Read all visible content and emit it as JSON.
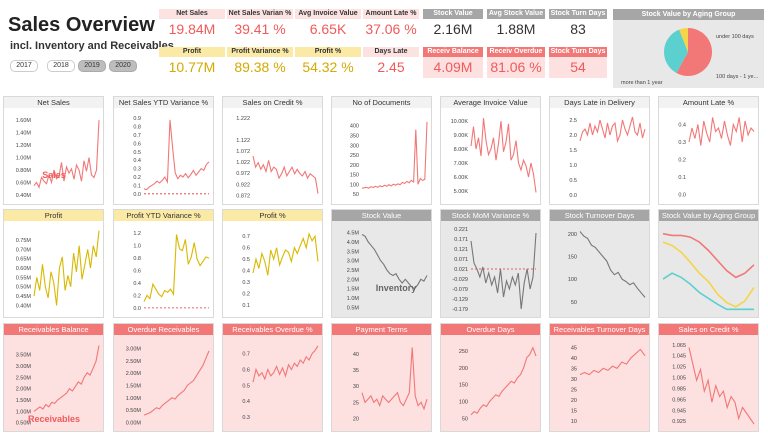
{
  "header": {
    "title": "Sales Overview",
    "subtitle": "incl. Inventory and Receivables",
    "years": [
      {
        "label": "2017",
        "selected": false
      },
      {
        "label": "2018",
        "selected": false
      },
      {
        "label": "2019",
        "selected": true
      },
      {
        "label": "2020",
        "selected": true
      }
    ]
  },
  "kpis": [
    {
      "label": "Net Sales",
      "value": "19.84M",
      "theme": "p"
    },
    {
      "label": "Net Sales Varian %",
      "value": "39.41 %",
      "theme": "p"
    },
    {
      "label": "Avg Invoice Value",
      "value": "6.65K",
      "theme": "p"
    },
    {
      "label": "Amount Late %",
      "value": "37.06 %",
      "theme": "p"
    },
    {
      "label": "Profit",
      "value": "10.77M",
      "theme": "y"
    },
    {
      "label": "Profit Variance %",
      "value": "89.38 %",
      "theme": "y"
    },
    {
      "label": "Profit %",
      "value": "54.32 %",
      "theme": "y"
    },
    {
      "label": "Days Late",
      "value": "2.45",
      "theme": "p"
    },
    {
      "label": "Stock Value",
      "value": "2.16M",
      "theme": "g"
    },
    {
      "label": "Avg Stock Value",
      "value": "1.88M",
      "theme": "g"
    },
    {
      "label": "Stock Turn Days",
      "value": "83",
      "theme": "g"
    },
    {
      "label": "Receiv Balance",
      "value": "4.09M",
      "theme": "r"
    },
    {
      "label": "Receiv Overdue",
      "value": "81.06 %",
      "theme": "r"
    },
    {
      "label": "Stock Turn Days",
      "value": "54",
      "theme": "r"
    }
  ],
  "aging": {
    "title": "Stock Value by Aging Group",
    "labels": [
      "under 100 days",
      "100 days - 1 ye...",
      "more than 1 year"
    ],
    "chart_data": {
      "type": "pie",
      "categories": [
        "under 100 days",
        "100 days - 1 ye...",
        "more than 1 year"
      ],
      "values": [
        58,
        36,
        6
      ],
      "colors": [
        "#f27777",
        "#5bd0cf",
        "#f5d547"
      ]
    }
  },
  "colors": {
    "pink": "#f27777",
    "gold": "#d9b800",
    "grey": "#777777",
    "teal": "#5bd0cf"
  },
  "cards": [
    {
      "title": "Net Sales",
      "row": 1,
      "chart_data": {
        "type": "line",
        "yticks": [
          "1.60M",
          "1.40M",
          "1.20M",
          "1.00M",
          "0.80M",
          "0.60M",
          "0.40M"
        ],
        "ylim": [
          0.35,
          1.7
        ],
        "values": [
          0.55,
          0.6,
          0.52,
          0.68,
          0.62,
          0.58,
          0.72,
          0.6,
          0.8,
          0.66,
          0.7,
          0.92,
          0.62,
          0.85,
          0.75,
          0.82,
          0.65,
          0.88,
          0.8,
          0.62,
          0.95,
          0.78,
          1.0,
          0.72,
          0.68,
          0.8,
          1.6
        ]
      },
      "overlay": "Sales"
    },
    {
      "title": "Net Sales YTD Variance %",
      "row": 1,
      "chart_data": {
        "type": "line",
        "yticks": [
          "0.9",
          "0.8",
          "0.7",
          "0.6",
          "0.5",
          "0.4",
          "0.3",
          "0.2",
          "0.1",
          "0.0"
        ],
        "ylim": [
          -0.05,
          0.95
        ],
        "values": [
          0.06,
          0.05,
          0.08,
          0.1,
          0.12,
          0.15,
          0.13,
          0.16,
          0.2,
          0.14,
          0.88,
          0.55,
          0.25,
          0.18,
          0.22,
          0.2,
          0.24,
          0.19,
          0.23,
          0.28,
          0.22,
          0.26,
          0.3,
          0.28,
          0.35,
          0.38
        ],
        "refline": 0.0
      }
    },
    {
      "title": "Sales on Credit %",
      "row": 1,
      "chart_data": {
        "type": "line",
        "yticks": [
          "1.222",
          "1.122",
          "1.072",
          "1.022",
          "0.972",
          "0.922",
          "0.872"
        ],
        "ylim": [
          0.86,
          1.24
        ],
        "values": [
          1.05,
          1.0,
          1.02,
          0.99,
          1.01,
          0.98,
          1.03,
          0.98,
          1.0,
          0.99,
          0.95,
          0.97,
          1.0,
          0.96,
          0.98,
          1.0,
          0.97,
          0.99,
          0.97,
          0.96,
          0.98,
          0.95,
          0.97,
          0.96,
          0.95,
          0.88
        ]
      }
    },
    {
      "title": "No of Documents",
      "row": 1,
      "chart_data": {
        "type": "line",
        "yticks": [
          "400",
          "350",
          "300",
          "250",
          "200",
          "150",
          "100",
          "50"
        ],
        "ylim": [
          30,
          460
        ],
        "values": [
          80,
          82,
          85,
          80,
          88,
          84,
          90,
          85,
          92,
          88,
          95,
          90,
          98,
          92,
          100,
          96,
          102,
          98,
          110,
          104,
          115,
          108,
          120,
          112,
          380,
          100,
          130,
          120,
          125,
          420
        ]
      }
    },
    {
      "title": "Average Invoice Value",
      "row": 1,
      "chart_data": {
        "type": "line",
        "yticks": [
          "10.00K",
          "9.00K",
          "8.00K",
          "7.00K",
          "6.00K",
          "5.00K"
        ],
        "ylim": [
          4.5,
          10.5
        ],
        "values": [
          8.2,
          9.6,
          8.0,
          8.8,
          7.5,
          10.2,
          8.6,
          7.6,
          8.0,
          8.8,
          7.2,
          8.4,
          10.0,
          7.8,
          8.5,
          9.8,
          7.2,
          7.6,
          8.6,
          7.0,
          6.5,
          7.2,
          6.8,
          6.0,
          7.0,
          6.2,
          4.9
        ]
      }
    },
    {
      "title": "Days Late in Delivery",
      "row": 1,
      "chart_data": {
        "type": "line",
        "yticks": [
          "2.5",
          "2.0",
          "1.5",
          "1.0",
          "0.5",
          "0.0"
        ],
        "ylim": [
          -0.1,
          2.7
        ],
        "values": [
          1.8,
          2.1,
          2.2,
          2.0,
          2.4,
          2.0,
          2.3,
          2.1,
          2.5,
          2.2,
          1.9,
          2.4,
          2.0,
          2.3,
          2.4,
          1.8,
          2.0,
          2.5,
          2.2,
          2.0,
          2.3,
          2.6,
          2.1,
          2.0,
          2.4,
          1.9,
          2.2
        ]
      }
    },
    {
      "title": "Amount Late %",
      "row": 1,
      "chart_data": {
        "type": "line",
        "yticks": [
          "0.4",
          "0.3",
          "0.2",
          "0.1",
          "0.0"
        ],
        "ylim": [
          -0.02,
          0.46
        ],
        "values": [
          0.3,
          0.38,
          0.32,
          0.4,
          0.28,
          0.42,
          0.35,
          0.3,
          0.44,
          0.36,
          0.38,
          0.32,
          0.42,
          0.34,
          0.28,
          0.4,
          0.36,
          0.44,
          0.3,
          0.42,
          0.34,
          0.38,
          0.36
        ]
      }
    },
    {
      "title": "Profit",
      "row": 2,
      "chart_data": {
        "type": "line",
        "yticks": [
          "0.75M",
          "0.70M",
          "0.65M",
          "0.60M",
          "0.55M",
          "0.50M",
          "0.45M",
          "0.40M"
        ],
        "ylim": [
          0.37,
          0.82
        ],
        "values": [
          0.45,
          0.55,
          0.48,
          0.62,
          0.5,
          0.44,
          0.58,
          0.52,
          0.4,
          0.6,
          0.66,
          0.48,
          0.56,
          0.5,
          0.68,
          0.58,
          0.72,
          0.54,
          0.62,
          0.7,
          0.6,
          0.72,
          0.66,
          0.8
        ]
      }
    },
    {
      "title": "Profit YTD Variance %",
      "row": 2,
      "chart_data": {
        "type": "line",
        "yticks": [
          "1.2",
          "1.0",
          "0.8",
          "0.6",
          "0.4",
          "0.2",
          "0.0"
        ],
        "ylim": [
          -0.05,
          1.3
        ],
        "values": [
          0.1,
          0.2,
          0.15,
          0.38,
          0.3,
          0.22,
          0.18,
          0.28,
          0.25,
          0.3,
          0.22,
          1.18,
          0.95,
          0.92,
          1.1,
          0.7,
          0.82,
          1.05,
          0.78,
          0.68,
          0.75,
          0.82,
          0.8
        ],
        "refline": 0.0
      }
    },
    {
      "title": "Profit %",
      "row": 2,
      "chart_data": {
        "type": "line",
        "yticks": [
          "0.7",
          "0.6",
          "0.5",
          "0.4",
          "0.3",
          "0.2",
          "0.1"
        ],
        "ylim": [
          0.05,
          0.78
        ],
        "values": [
          0.38,
          0.5,
          0.42,
          0.55,
          0.48,
          0.36,
          0.58,
          0.5,
          0.6,
          0.45,
          0.52,
          0.58,
          0.56,
          0.48,
          0.6,
          0.55,
          0.62,
          0.68,
          0.6,
          0.72,
          0.66,
          0.7,
          0.48
        ]
      }
    },
    {
      "title": "Stock Value",
      "row": 2,
      "grey": true,
      "overlay": "Inventory",
      "chart_data": {
        "type": "line",
        "yticks": [
          "4.5M",
          "4.0M",
          "3.5M",
          "3.0M",
          "2.5M",
          "2.0M",
          "1.5M",
          "1.0M",
          "0.5M"
        ],
        "ylim": [
          0.3,
          4.8
        ],
        "values": [
          4.4,
          4.3,
          4.0,
          3.8,
          3.6,
          3.3,
          3.0,
          2.8,
          2.5,
          2.3,
          2.2,
          2.3,
          2.0,
          1.8,
          2.0,
          1.8,
          1.6,
          1.5,
          1.7,
          2.0,
          1.9,
          2.2
        ]
      }
    },
    {
      "title": "Stock MoM Variance %",
      "row": 2,
      "grey": true,
      "chart_data": {
        "type": "line",
        "yticks": [
          "0.221",
          "0.171",
          "0.121",
          "0.071",
          "0.021",
          "-0.029",
          "-0.079",
          "-0.129",
          "-0.179"
        ],
        "ylim": [
          -0.19,
          0.23
        ],
        "values": [
          0.16,
          0.05,
          0.02,
          -0.02,
          0.03,
          -0.05,
          0.0,
          -0.06,
          -0.02,
          -0.1,
          0.02,
          -0.12,
          -0.04,
          -0.08,
          -0.02,
          -0.06,
          0.0,
          -0.18,
          -0.05,
          0.02,
          -0.08,
          -0.02,
          0.2
        ],
        "refline": 0.02
      }
    },
    {
      "title": "Stock Turnover Days",
      "row": 2,
      "grey": true,
      "chart_data": {
        "type": "line",
        "yticks": [
          "200",
          "150",
          "100",
          "50"
        ],
        "ylim": [
          30,
          215
        ],
        "values": [
          205,
          195,
          190,
          175,
          170,
          160,
          150,
          140,
          120,
          110,
          115,
          100,
          95,
          88,
          92,
          80,
          70,
          60
        ]
      }
    },
    {
      "title": "Stock Value by Aging Group",
      "row": 2,
      "grey": true,
      "chart_data": {
        "type": "line",
        "ylim": [
          0,
          1
        ],
        "series": [
          {
            "name": "under 100 days",
            "color": "#f27777",
            "values": [
              0.92,
              0.9,
              0.9,
              0.88,
              0.82,
              0.72,
              0.6,
              0.48,
              0.4,
              0.45,
              0.55
            ]
          },
          {
            "name": "100 days - 1 ye...",
            "color": "#f5d547",
            "values": [
              0.82,
              0.78,
              0.7,
              0.58,
              0.45,
              0.35,
              0.2,
              0.1,
              0.05,
              0.12,
              0.28
            ]
          },
          {
            "name": "100 days - 1 ye...",
            "color": "#5bd0cf",
            "values": [
              0.38,
              0.45,
              0.4,
              0.32,
              0.22,
              0.15,
              0.08,
              0.02,
              0.02,
              0.02,
              0.02
            ]
          }
        ]
      }
    },
    {
      "title": "Receivables Balance",
      "row": 3,
      "overlay": "Receivables",
      "chart_data": {
        "type": "line",
        "yticks": [
          "3.50M",
          "3.00M",
          "2.50M",
          "2.00M",
          "1.50M",
          "1.00M",
          "0.50M"
        ],
        "ylim": [
          0.4,
          4.1
        ],
        "values": [
          1.0,
          1.1,
          1.2,
          1.1,
          1.3,
          1.2,
          1.4,
          1.35,
          1.5,
          1.6,
          1.7,
          1.8,
          2.0,
          1.9,
          2.1,
          2.3,
          2.2,
          2.5,
          2.7,
          2.6,
          2.9,
          3.2,
          3.9
        ]
      }
    },
    {
      "title": "Overdue Receivables",
      "row": 3,
      "chart_data": {
        "type": "line",
        "yticks": [
          "3.00M",
          "2.50M",
          "2.00M",
          "1.50M",
          "1.00M",
          "0.50M",
          "0.00M"
        ],
        "ylim": [
          -0.1,
          3.3
        ],
        "values": [
          0.3,
          0.35,
          0.4,
          0.5,
          0.6,
          0.55,
          0.7,
          0.8,
          0.9,
          1.0,
          0.95,
          1.1,
          1.2,
          1.3,
          1.5,
          1.6,
          1.7,
          1.9,
          2.1,
          2.3,
          2.6,
          2.9
        ]
      }
    },
    {
      "title": "Receivables Overdue %",
      "row": 3,
      "chart_data": {
        "type": "line",
        "yticks": [
          "0.7",
          "0.6",
          "0.5",
          "0.4",
          "0.3"
        ],
        "ylim": [
          0.25,
          0.78
        ],
        "values": [
          0.52,
          0.6,
          0.56,
          0.58,
          0.54,
          0.6,
          0.56,
          0.58,
          0.62,
          0.57,
          0.61,
          0.56,
          0.63,
          0.6,
          0.64,
          0.62,
          0.66,
          0.64,
          0.68,
          0.66,
          0.7,
          0.72,
          0.75
        ]
      }
    },
    {
      "title": "Payment Terms",
      "row": 3,
      "chart_data": {
        "type": "line",
        "yticks": [
          "40",
          "35",
          "30",
          "25",
          "20"
        ],
        "ylim": [
          18,
          44
        ],
        "values": [
          28,
          25,
          26,
          27,
          25,
          26,
          24,
          27,
          26,
          25,
          26,
          27,
          28,
          25,
          24,
          26,
          28,
          42,
          27,
          24,
          25,
          23,
          26
        ]
      }
    },
    {
      "title": "Overdue Days",
      "row": 3,
      "chart_data": {
        "type": "line",
        "yticks": [
          "250",
          "200",
          "150",
          "100",
          "50"
        ],
        "ylim": [
          30,
          280
        ],
        "values": [
          60,
          70,
          65,
          80,
          90,
          85,
          100,
          110,
          120,
          115,
          130,
          140,
          150,
          160,
          155,
          170,
          180,
          200,
          230,
          240,
          260,
          235
        ]
      }
    },
    {
      "title": "Receivables Turnover Days",
      "row": 3,
      "chart_data": {
        "type": "line",
        "yticks": [
          "45",
          "40",
          "35",
          "30",
          "25",
          "20",
          "15",
          "10"
        ],
        "ylim": [
          8,
          48
        ],
        "values": [
          32,
          33,
          32,
          34,
          33,
          35,
          34,
          36,
          35,
          38,
          37,
          40,
          42,
          44,
          41
        ]
      }
    },
    {
      "title": "Sales on Credit %",
      "row": 3,
      "chart_data": {
        "type": "line",
        "yticks": [
          "1.065",
          "1.045",
          "1.025",
          "1.005",
          "0.985",
          "0.965",
          "0.945",
          "0.925"
        ],
        "ylim": [
          0.918,
          1.072
        ],
        "values": [
          1.06,
          1.03,
          1.0,
          1.02,
          0.98,
          1.0,
          0.96,
          0.99,
          0.97,
          0.98,
          0.95,
          0.97,
          0.96,
          0.93,
          0.95,
          0.94,
          0.93,
          0.92
        ]
      }
    }
  ]
}
